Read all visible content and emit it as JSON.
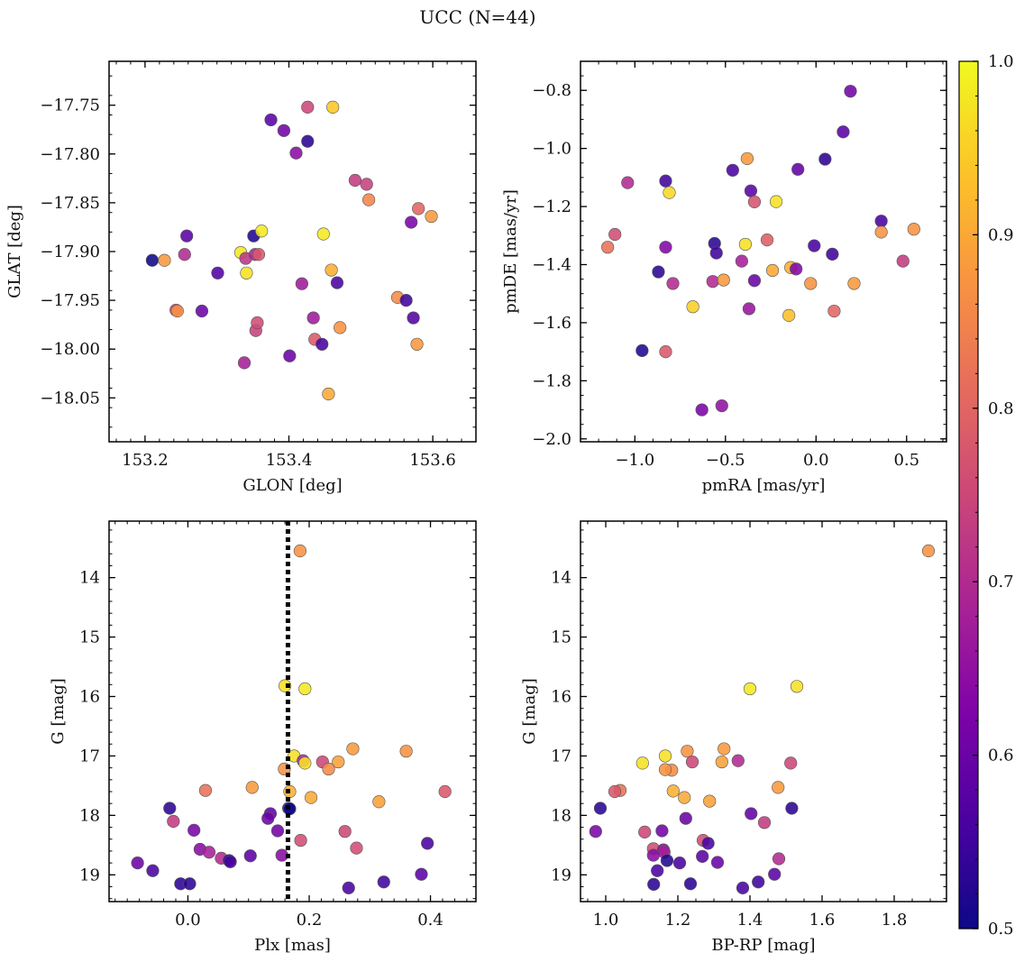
{
  "figure": {
    "title": "UCC (N=44)"
  },
  "colorbar": {
    "cmap": "plasma",
    "range": [
      0.5,
      1.0
    ],
    "ticks": [
      "0.5",
      "0.6",
      "0.7",
      "0.8",
      "0.9",
      "1.0"
    ]
  },
  "chart_data": [
    {
      "type": "scatter",
      "xlabel": "GLON [deg]",
      "ylabel": "GLAT [deg]",
      "xlim": [
        153.15,
        153.66
      ],
      "ylim": [
        -18.095,
        -17.705
      ],
      "xticks": [
        "153.2",
        "153.4",
        "153.6"
      ],
      "yticks": [
        "−17.75",
        "−17.80",
        "−17.85",
        "−17.90",
        "−17.95",
        "−18.00",
        "−18.05"
      ],
      "points": [
        {
          "x": 153.21,
          "y": -17.909,
          "p": 0.5
        },
        {
          "x": 153.227,
          "y": -17.909,
          "p": 0.88
        },
        {
          "x": 153.243,
          "y": -17.96,
          "p": 0.75
        },
        {
          "x": 153.245,
          "y": -17.961,
          "p": 0.87
        },
        {
          "x": 153.255,
          "y": -17.903,
          "p": 0.7
        },
        {
          "x": 153.258,
          "y": -17.884,
          "p": 0.58
        },
        {
          "x": 153.279,
          "y": -17.961,
          "p": 0.6
        },
        {
          "x": 153.301,
          "y": -17.922,
          "p": 0.57
        },
        {
          "x": 153.333,
          "y": -17.901,
          "p": 0.98
        },
        {
          "x": 153.338,
          "y": -18.014,
          "p": 0.68
        },
        {
          "x": 153.34,
          "y": -17.907,
          "p": 0.72
        },
        {
          "x": 153.341,
          "y": -17.922,
          "p": 0.97
        },
        {
          "x": 153.351,
          "y": -17.884,
          "p": 0.52
        },
        {
          "x": 153.354,
          "y": -17.981,
          "p": 0.74
        },
        {
          "x": 153.356,
          "y": -17.973,
          "p": 0.76
        },
        {
          "x": 153.353,
          "y": -17.903,
          "p": 0.69
        },
        {
          "x": 153.358,
          "y": -17.903,
          "p": 0.78
        },
        {
          "x": 153.362,
          "y": -17.879,
          "p": 0.98
        },
        {
          "x": 153.375,
          "y": -17.765,
          "p": 0.58
        },
        {
          "x": 153.393,
          "y": -17.776,
          "p": 0.61
        },
        {
          "x": 153.401,
          "y": -18.007,
          "p": 0.6
        },
        {
          "x": 153.41,
          "y": -17.799,
          "p": 0.64
        },
        {
          "x": 153.418,
          "y": -17.933,
          "p": 0.67
        },
        {
          "x": 153.426,
          "y": -17.752,
          "p": 0.75
        },
        {
          "x": 153.426,
          "y": -17.787,
          "p": 0.53
        },
        {
          "x": 153.434,
          "y": -17.968,
          "p": 0.67
        },
        {
          "x": 153.436,
          "y": -17.99,
          "p": 0.78
        },
        {
          "x": 153.446,
          "y": -17.995,
          "p": 0.56
        },
        {
          "x": 153.448,
          "y": -17.882,
          "p": 0.98
        },
        {
          "x": 153.455,
          "y": -18.046,
          "p": 0.9
        },
        {
          "x": 153.459,
          "y": -17.919,
          "p": 0.91
        },
        {
          "x": 153.461,
          "y": -17.752,
          "p": 0.94
        },
        {
          "x": 153.467,
          "y": -17.932,
          "p": 0.56
        },
        {
          "x": 153.471,
          "y": -17.978,
          "p": 0.87
        },
        {
          "x": 153.492,
          "y": -17.827,
          "p": 0.73
        },
        {
          "x": 153.508,
          "y": -17.831,
          "p": 0.74
        },
        {
          "x": 153.511,
          "y": -17.847,
          "p": 0.85
        },
        {
          "x": 153.551,
          "y": -17.947,
          "p": 0.86
        },
        {
          "x": 153.563,
          "y": -17.95,
          "p": 0.55
        },
        {
          "x": 153.57,
          "y": -17.87,
          "p": 0.62
        },
        {
          "x": 153.573,
          "y": -17.968,
          "p": 0.57
        },
        {
          "x": 153.578,
          "y": -17.995,
          "p": 0.88
        },
        {
          "x": 153.58,
          "y": -17.856,
          "p": 0.8
        },
        {
          "x": 153.598,
          "y": -17.864,
          "p": 0.88
        }
      ]
    },
    {
      "type": "scatter",
      "xlabel": "pmRA [mas/yr]",
      "ylabel": "pmDE [mas/yr]",
      "xlim": [
        -1.3,
        0.72
      ],
      "ylim": [
        -2.01,
        -0.7
      ],
      "xticks": [
        "−1.0",
        "−0.5",
        "0.0",
        "0.5"
      ],
      "yticks": [
        "−2.0",
        "−1.8",
        "−1.6",
        "−1.4",
        "−1.2",
        "−1.0",
        "−0.8"
      ],
      "points": [
        {
          "x": -1.15,
          "y": -1.34,
          "p": 0.82
        },
        {
          "x": -1.11,
          "y": -1.296,
          "p": 0.76
        },
        {
          "x": -1.04,
          "y": -1.118,
          "p": 0.7
        },
        {
          "x": -0.96,
          "y": -1.696,
          "p": 0.52
        },
        {
          "x": -0.87,
          "y": -1.425,
          "p": 0.53
        },
        {
          "x": -0.83,
          "y": -1.112,
          "p": 0.55
        },
        {
          "x": -0.83,
          "y": -1.34,
          "p": 0.63
        },
        {
          "x": -0.83,
          "y": -1.7,
          "p": 0.78
        },
        {
          "x": -0.81,
          "y": -1.152,
          "p": 0.96
        },
        {
          "x": -0.79,
          "y": -1.465,
          "p": 0.7
        },
        {
          "x": -0.68,
          "y": -1.545,
          "p": 0.95
        },
        {
          "x": -0.63,
          "y": -1.9,
          "p": 0.62
        },
        {
          "x": -0.57,
          "y": -1.458,
          "p": 0.7
        },
        {
          "x": -0.56,
          "y": -1.327,
          "p": 0.53
        },
        {
          "x": -0.55,
          "y": -1.36,
          "p": 0.55
        },
        {
          "x": -0.52,
          "y": -1.886,
          "p": 0.65
        },
        {
          "x": -0.51,
          "y": -1.453,
          "p": 0.88
        },
        {
          "x": -0.46,
          "y": -1.075,
          "p": 0.56
        },
        {
          "x": -0.41,
          "y": -1.388,
          "p": 0.68
        },
        {
          "x": -0.39,
          "y": -1.33,
          "p": 0.97
        },
        {
          "x": -0.38,
          "y": -1.035,
          "p": 0.88
        },
        {
          "x": -0.37,
          "y": -1.552,
          "p": 0.66
        },
        {
          "x": -0.36,
          "y": -1.146,
          "p": 0.58
        },
        {
          "x": -0.34,
          "y": -1.184,
          "p": 0.77
        },
        {
          "x": -0.34,
          "y": -1.455,
          "p": 0.6
        },
        {
          "x": -0.27,
          "y": -1.315,
          "p": 0.79
        },
        {
          "x": -0.24,
          "y": -1.42,
          "p": 0.9
        },
        {
          "x": -0.22,
          "y": -1.183,
          "p": 0.97
        },
        {
          "x": -0.15,
          "y": -1.575,
          "p": 0.93
        },
        {
          "x": -0.14,
          "y": -1.41,
          "p": 0.91
        },
        {
          "x": -0.11,
          "y": -1.415,
          "p": 0.63
        },
        {
          "x": -0.1,
          "y": -1.072,
          "p": 0.59
        },
        {
          "x": -0.03,
          "y": -1.465,
          "p": 0.87
        },
        {
          "x": -0.01,
          "y": -1.335,
          "p": 0.56
        },
        {
          "x": 0.05,
          "y": -1.037,
          "p": 0.53
        },
        {
          "x": 0.09,
          "y": -1.364,
          "p": 0.55
        },
        {
          "x": 0.1,
          "y": -1.56,
          "p": 0.8
        },
        {
          "x": 0.15,
          "y": -0.943,
          "p": 0.58
        },
        {
          "x": 0.19,
          "y": -0.803,
          "p": 0.61
        },
        {
          "x": 0.21,
          "y": -1.465,
          "p": 0.88
        },
        {
          "x": 0.36,
          "y": -1.25,
          "p": 0.56
        },
        {
          "x": 0.36,
          "y": -1.288,
          "p": 0.87
        },
        {
          "x": 0.48,
          "y": -1.388,
          "p": 0.73
        },
        {
          "x": 0.54,
          "y": -1.278,
          "p": 0.87
        }
      ]
    },
    {
      "type": "scatter",
      "xlabel": "Plx [mas]",
      "ylabel": "G [mag]",
      "xlim": [
        -0.13,
        0.475
      ],
      "ylim": [
        19.45,
        13.05
      ],
      "xticks": [
        "0.0",
        "0.2",
        "0.4"
      ],
      "yticks": [
        "14",
        "15",
        "16",
        "17",
        "18",
        "19"
      ],
      "vline": {
        "x": 0.165
      },
      "points": [
        {
          "x": 0.185,
          "y": 13.55,
          "p": 0.87
        },
        {
          "x": 0.16,
          "y": 15.82,
          "p": 0.97
        },
        {
          "x": 0.193,
          "y": 15.87,
          "p": 0.98
        },
        {
          "x": 0.272,
          "y": 16.88,
          "p": 0.88
        },
        {
          "x": 0.36,
          "y": 16.92,
          "p": 0.87
        },
        {
          "x": 0.175,
          "y": 17.0,
          "p": 0.97
        },
        {
          "x": 0.19,
          "y": 17.08,
          "p": 0.7
        },
        {
          "x": 0.193,
          "y": 17.12,
          "p": 0.97
        },
        {
          "x": 0.222,
          "y": 17.1,
          "p": 0.75
        },
        {
          "x": 0.248,
          "y": 17.1,
          "p": 0.89
        },
        {
          "x": 0.232,
          "y": 17.22,
          "p": 0.86
        },
        {
          "x": 0.159,
          "y": 17.22,
          "p": 0.87
        },
        {
          "x": 0.106,
          "y": 17.53,
          "p": 0.88
        },
        {
          "x": 0.029,
          "y": 17.58,
          "p": 0.82
        },
        {
          "x": 0.168,
          "y": 17.6,
          "p": 0.91
        },
        {
          "x": 0.424,
          "y": 17.6,
          "p": 0.78
        },
        {
          "x": 0.203,
          "y": 17.7,
          "p": 0.9
        },
        {
          "x": 0.315,
          "y": 17.77,
          "p": 0.89
        },
        {
          "x": 0.166,
          "y": 17.88,
          "p": 0.53
        },
        {
          "x": -0.03,
          "y": 17.88,
          "p": 0.53
        },
        {
          "x": 0.136,
          "y": 17.97,
          "p": 0.59
        },
        {
          "x": 0.132,
          "y": 18.05,
          "p": 0.6
        },
        {
          "x": -0.024,
          "y": 18.1,
          "p": 0.73
        },
        {
          "x": 0.01,
          "y": 18.25,
          "p": 0.62
        },
        {
          "x": 0.148,
          "y": 18.26,
          "p": 0.61
        },
        {
          "x": 0.259,
          "y": 18.27,
          "p": 0.75
        },
        {
          "x": 0.395,
          "y": 18.47,
          "p": 0.56
        },
        {
          "x": 0.186,
          "y": 18.42,
          "p": 0.76
        },
        {
          "x": 0.278,
          "y": 18.55,
          "p": 0.76
        },
        {
          "x": 0.02,
          "y": 18.57,
          "p": 0.64
        },
        {
          "x": 0.035,
          "y": 18.62,
          "p": 0.68
        },
        {
          "x": 0.155,
          "y": 18.67,
          "p": 0.64
        },
        {
          "x": 0.103,
          "y": 18.68,
          "p": 0.58
        },
        {
          "x": 0.055,
          "y": 18.72,
          "p": 0.7
        },
        {
          "x": 0.068,
          "y": 18.76,
          "p": 0.52
        },
        {
          "x": 0.07,
          "y": 18.78,
          "p": 0.56
        },
        {
          "x": -0.083,
          "y": 18.8,
          "p": 0.6
        },
        {
          "x": -0.058,
          "y": 18.93,
          "p": 0.56
        },
        {
          "x": 0.385,
          "y": 18.99,
          "p": 0.58
        },
        {
          "x": -0.012,
          "y": 19.15,
          "p": 0.53
        },
        {
          "x": 0.003,
          "y": 19.15,
          "p": 0.53
        },
        {
          "x": 0.323,
          "y": 19.12,
          "p": 0.55
        },
        {
          "x": 0.265,
          "y": 19.22,
          "p": 0.56
        },
        {
          "x": 0.168,
          "y": 17.89,
          "p": 0.5
        }
      ]
    },
    {
      "type": "scatter",
      "xlabel": "BP-RP [mag]",
      "ylabel": "G [mag]",
      "xlim": [
        0.93,
        1.945
      ],
      "ylim": [
        19.45,
        13.05
      ],
      "xticks": [
        "1.0",
        "1.2",
        "1.4",
        "1.6",
        "1.8"
      ],
      "yticks": [
        "14",
        "15",
        "16",
        "17",
        "18",
        "19"
      ],
      "points": [
        {
          "x": 1.895,
          "y": 13.55,
          "p": 0.87
        },
        {
          "x": 1.53,
          "y": 15.83,
          "p": 0.97
        },
        {
          "x": 1.4,
          "y": 15.87,
          "p": 0.98
        },
        {
          "x": 1.328,
          "y": 16.88,
          "p": 0.88
        },
        {
          "x": 1.226,
          "y": 16.92,
          "p": 0.87
        },
        {
          "x": 1.165,
          "y": 17.0,
          "p": 0.97
        },
        {
          "x": 1.367,
          "y": 17.08,
          "p": 0.7
        },
        {
          "x": 1.102,
          "y": 17.12,
          "p": 0.97
        },
        {
          "x": 1.24,
          "y": 17.1,
          "p": 0.75
        },
        {
          "x": 1.322,
          "y": 17.1,
          "p": 0.89
        },
        {
          "x": 1.513,
          "y": 17.12,
          "p": 0.75
        },
        {
          "x": 1.183,
          "y": 17.24,
          "p": 0.86
        },
        {
          "x": 1.165,
          "y": 17.23,
          "p": 0.87
        },
        {
          "x": 1.478,
          "y": 17.53,
          "p": 0.88
        },
        {
          "x": 1.04,
          "y": 17.58,
          "p": 0.82
        },
        {
          "x": 1.025,
          "y": 17.6,
          "p": 0.78
        },
        {
          "x": 1.187,
          "y": 17.59,
          "p": 0.91
        },
        {
          "x": 1.218,
          "y": 17.7,
          "p": 0.9
        },
        {
          "x": 1.288,
          "y": 17.76,
          "p": 0.89
        },
        {
          "x": 0.985,
          "y": 17.88,
          "p": 0.53
        },
        {
          "x": 1.516,
          "y": 17.88,
          "p": 0.53
        },
        {
          "x": 1.403,
          "y": 17.97,
          "p": 0.59
        },
        {
          "x": 1.222,
          "y": 18.05,
          "p": 0.6
        },
        {
          "x": 1.44,
          "y": 18.12,
          "p": 0.73
        },
        {
          "x": 0.972,
          "y": 18.27,
          "p": 0.62
        },
        {
          "x": 1.156,
          "y": 18.26,
          "p": 0.61
        },
        {
          "x": 1.108,
          "y": 18.28,
          "p": 0.75
        },
        {
          "x": 1.27,
          "y": 18.42,
          "p": 0.76
        },
        {
          "x": 1.284,
          "y": 18.47,
          "p": 0.56
        },
        {
          "x": 1.132,
          "y": 18.56,
          "p": 0.76
        },
        {
          "x": 1.16,
          "y": 18.58,
          "p": 0.64
        },
        {
          "x": 1.162,
          "y": 18.62,
          "p": 0.68
        },
        {
          "x": 1.132,
          "y": 18.67,
          "p": 0.64
        },
        {
          "x": 1.268,
          "y": 18.69,
          "p": 0.58
        },
        {
          "x": 1.48,
          "y": 18.73,
          "p": 0.7
        },
        {
          "x": 1.17,
          "y": 18.76,
          "p": 0.52
        },
        {
          "x": 1.205,
          "y": 18.8,
          "p": 0.56
        },
        {
          "x": 1.31,
          "y": 18.79,
          "p": 0.6
        },
        {
          "x": 1.143,
          "y": 18.93,
          "p": 0.56
        },
        {
          "x": 1.468,
          "y": 18.99,
          "p": 0.58
        },
        {
          "x": 1.133,
          "y": 19.16,
          "p": 0.53
        },
        {
          "x": 1.235,
          "y": 19.15,
          "p": 0.53
        },
        {
          "x": 1.423,
          "y": 19.12,
          "p": 0.55
        },
        {
          "x": 1.38,
          "y": 19.22,
          "p": 0.56
        }
      ]
    }
  ]
}
